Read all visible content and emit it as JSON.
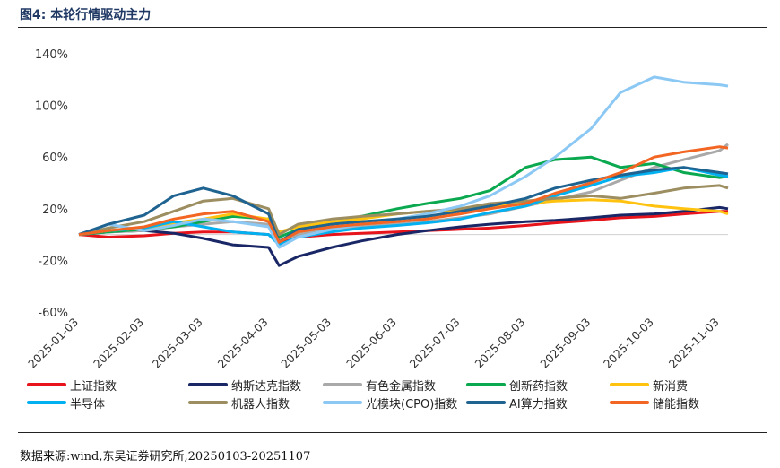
{
  "header": {
    "title": "图4:  本轮行情驱动主力"
  },
  "footer": {
    "source": "数据来源:wind,东吴证券研究所,20250103-20251107"
  },
  "chart_data": {
    "type": "line",
    "title": "",
    "xlabel": "",
    "ylabel": "",
    "ylim": [
      -60,
      140
    ],
    "yticks": [
      -60,
      -20,
      20,
      60,
      100,
      140
    ],
    "ytick_labels": [
      "-60%",
      "-20%",
      "20%",
      "60%",
      "100%",
      "140%"
    ],
    "xtick_labels": [
      "2025-01-03",
      "2025-02-03",
      "2025-03-03",
      "2025-04-03",
      "2025-05-03",
      "2025-06-03",
      "2025-07-03",
      "2025-08-03",
      "2025-09-03",
      "2025-10-03",
      "2025-11-03"
    ],
    "x": [
      "2025-01-03",
      "2025-01-17",
      "2025-02-03",
      "2025-02-17",
      "2025-03-03",
      "2025-03-17",
      "2025-04-03",
      "2025-04-08",
      "2025-04-17",
      "2025-05-03",
      "2025-05-17",
      "2025-06-03",
      "2025-06-17",
      "2025-07-03",
      "2025-07-17",
      "2025-08-03",
      "2025-08-17",
      "2025-09-03",
      "2025-09-17",
      "2025-10-03",
      "2025-10-17",
      "2025-11-03",
      "2025-11-07"
    ],
    "legend_position": "bottom",
    "series": [
      {
        "name": "上证指数",
        "color": "#e8141c",
        "values": [
          0,
          -2,
          -1,
          1,
          2,
          2,
          0,
          -7,
          -2,
          0,
          1,
          2,
          3,
          4,
          5,
          7,
          9,
          11,
          13,
          14,
          16,
          18,
          18
        ]
      },
      {
        "name": "纳斯达克指数",
        "color": "#1a2766",
        "values": [
          0,
          2,
          3,
          1,
          -3,
          -8,
          -10,
          -24,
          -17,
          -10,
          -5,
          0,
          3,
          6,
          8,
          10,
          11,
          13,
          15,
          16,
          18,
          21,
          20
        ]
      },
      {
        "name": "有色金属指数",
        "color": "#a9a9a9",
        "values": [
          0,
          2,
          3,
          6,
          8,
          10,
          8,
          -4,
          0,
          4,
          6,
          8,
          10,
          13,
          16,
          22,
          27,
          33,
          42,
          52,
          58,
          65,
          70
        ]
      },
      {
        "name": "创新药指数",
        "color": "#0aa84f",
        "values": [
          0,
          2,
          4,
          6,
          10,
          14,
          12,
          -2,
          4,
          9,
          14,
          20,
          24,
          28,
          34,
          52,
          58,
          60,
          52,
          55,
          48,
          44,
          45
        ]
      },
      {
        "name": "新消费",
        "color": "#ffc20e",
        "values": [
          0,
          3,
          5,
          9,
          12,
          16,
          12,
          2,
          6,
          10,
          12,
          16,
          18,
          19,
          22,
          24,
          26,
          27,
          26,
          22,
          20,
          18,
          16
        ]
      },
      {
        "name": "半导体",
        "color": "#00b0f0",
        "values": [
          0,
          3,
          5,
          10,
          6,
          2,
          0,
          -8,
          -2,
          2,
          5,
          7,
          9,
          12,
          17,
          22,
          30,
          38,
          45,
          48,
          52,
          46,
          45
        ]
      },
      {
        "name": "机器人指数",
        "color": "#9c8e60",
        "values": [
          0,
          5,
          10,
          18,
          26,
          28,
          20,
          0,
          8,
          12,
          14,
          16,
          18,
          20,
          24,
          26,
          28,
          30,
          28,
          32,
          36,
          38,
          36
        ]
      },
      {
        "name": "光模块(CPO)指数",
        "color": "#8cc8f4",
        "values": [
          0,
          8,
          3,
          7,
          12,
          10,
          6,
          -10,
          -2,
          4,
          8,
          12,
          16,
          22,
          30,
          45,
          60,
          82,
          110,
          122,
          118,
          116,
          115
        ]
      },
      {
        "name": "AI算力指数",
        "color": "#1f6391",
        "values": [
          0,
          8,
          15,
          30,
          36,
          30,
          16,
          -6,
          4,
          8,
          10,
          12,
          14,
          18,
          22,
          28,
          36,
          42,
          46,
          50,
          52,
          48,
          47
        ]
      },
      {
        "name": "储能指数",
        "color": "#f26522",
        "values": [
          0,
          3,
          6,
          12,
          16,
          18,
          10,
          -6,
          2,
          6,
          8,
          10,
          12,
          16,
          20,
          24,
          32,
          40,
          48,
          60,
          64,
          68,
          67
        ]
      }
    ]
  }
}
